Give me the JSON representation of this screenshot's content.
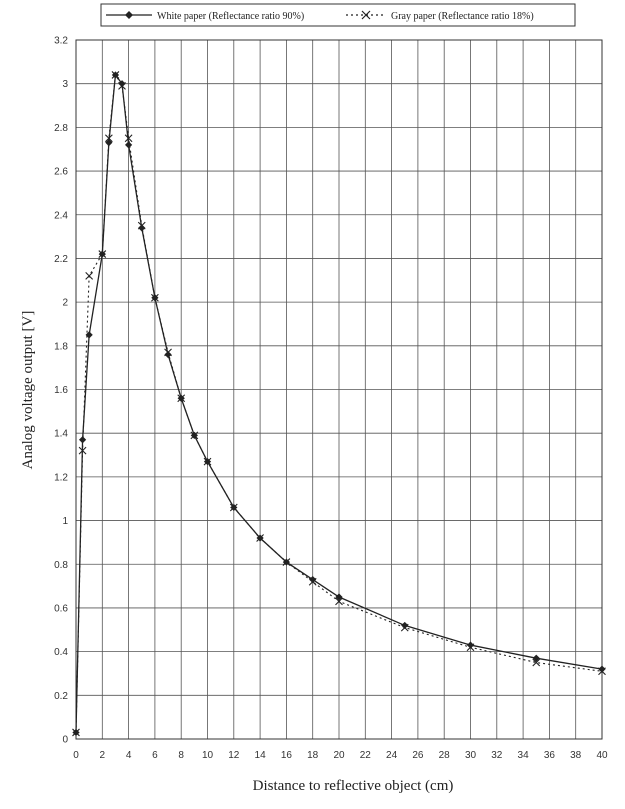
{
  "chart_data": {
    "type": "line",
    "xlabel": "Distance to reflective object   (cm)",
    "ylabel": "Analog voltage output [V]",
    "xlim": [
      0,
      40
    ],
    "ylim": [
      0,
      3.2
    ],
    "x_ticks": [
      "0",
      "2",
      "4",
      "6",
      "8",
      "10",
      "12",
      "14",
      "16",
      "18",
      "20",
      "22",
      "24",
      "26",
      "28",
      "30",
      "32",
      "34",
      "36",
      "38",
      "40"
    ],
    "y_ticks": [
      "0",
      "0.2",
      "0.4",
      "0.6",
      "0.8",
      "1",
      "1.2",
      "1.4",
      "1.6",
      "1.8",
      "2",
      "2.2",
      "2.4",
      "2.6",
      "2.8",
      "3",
      "3.2"
    ],
    "grid": true,
    "legend_position": "top",
    "series": [
      {
        "name": "White paper (Reflectance ratio 90%)",
        "marker": "diamond",
        "line": "solid",
        "color": "#222222",
        "x": [
          0,
          0.5,
          1,
          2,
          2.5,
          3,
          3.5,
          4,
          5,
          6,
          7,
          8,
          9,
          10,
          12,
          14,
          16,
          18,
          20,
          25,
          30,
          35,
          40
        ],
        "y": [
          0.03,
          1.37,
          1.85,
          2.22,
          2.73,
          3.04,
          3.0,
          2.72,
          2.34,
          2.02,
          1.76,
          1.56,
          1.39,
          1.27,
          1.06,
          0.92,
          0.81,
          0.73,
          0.65,
          0.52,
          0.43,
          0.37,
          0.32
        ]
      },
      {
        "name": "Gray paper (Reflectance ratio 18%)",
        "marker": "x",
        "line": "dotted",
        "color": "#222222",
        "x": [
          0,
          0.5,
          1,
          2,
          2.5,
          3,
          3.5,
          4,
          5,
          6,
          7,
          8,
          9,
          10,
          12,
          14,
          16,
          18,
          20,
          25,
          30,
          35,
          40
        ],
        "y": [
          0.03,
          1.32,
          2.12,
          2.22,
          2.75,
          3.04,
          2.99,
          2.75,
          2.35,
          2.02,
          1.77,
          1.56,
          1.39,
          1.27,
          1.06,
          0.92,
          0.81,
          0.72,
          0.63,
          0.51,
          0.42,
          0.35,
          0.31
        ]
      }
    ]
  }
}
